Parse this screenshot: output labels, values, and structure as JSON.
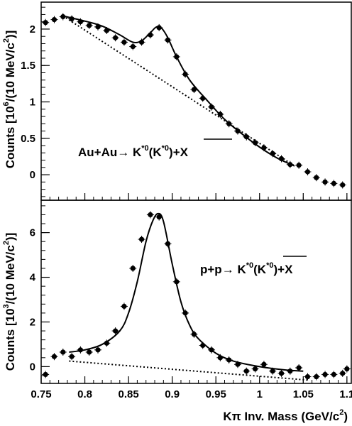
{
  "chart_data": [
    {
      "type": "scatter",
      "panel": "top",
      "annotation": {
        "prefix": "Au+Au",
        "arrow": "→",
        "k": "K",
        "sup": "*0",
        "close": ")",
        "suffix": "+X"
      },
      "ylabel": {
        "pre": "Counts [10",
        "sup1": "6",
        "mid": "/(10 MeV/c",
        "sup2": "2",
        "post": ")]"
      },
      "xlim": [
        0.75,
        1.105
      ],
      "ylim": [
        -0.35,
        2.37
      ],
      "yticks": [
        {
          "v": 0,
          "label": "0"
        },
        {
          "v": 0.5,
          "label": "0.5"
        },
        {
          "v": 1,
          "label": "1"
        },
        {
          "v": 1.5,
          "label": "1.5"
        },
        {
          "v": 2,
          "label": "2"
        }
      ],
      "data_points": {
        "x": [
          0.755,
          0.765,
          0.775,
          0.785,
          0.795,
          0.805,
          0.815,
          0.825,
          0.835,
          0.845,
          0.855,
          0.865,
          0.875,
          0.885,
          0.895,
          0.905,
          0.915,
          0.925,
          0.935,
          0.945,
          0.955,
          0.965,
          0.975,
          0.985,
          0.995,
          1.005,
          1.015,
          1.025,
          1.035,
          1.045,
          1.055,
          1.065,
          1.075,
          1.085,
          1.095
        ],
        "y": [
          2.09,
          2.13,
          2.17,
          2.14,
          2.1,
          2.05,
          2.03,
          1.98,
          1.88,
          1.82,
          1.76,
          1.82,
          1.92,
          2.02,
          1.85,
          1.62,
          1.38,
          1.17,
          1.05,
          0.93,
          0.83,
          0.7,
          0.6,
          0.52,
          0.44,
          0.37,
          0.29,
          0.22,
          0.14,
          0.13,
          0.04,
          -0.04,
          -0.1,
          -0.12,
          -0.14
        ]
      },
      "fit_curve": {
        "x": [
          0.775,
          0.8,
          0.82,
          0.84,
          0.855,
          0.865,
          0.875,
          0.882,
          0.888,
          0.895,
          0.905,
          0.92,
          0.94,
          0.96,
          0.98,
          1.0,
          1.02,
          1.04
        ],
        "y": [
          2.18,
          2.11,
          2.04,
          1.92,
          1.82,
          1.84,
          1.95,
          2.03,
          2.01,
          1.88,
          1.62,
          1.3,
          1.02,
          0.76,
          0.56,
          0.38,
          0.23,
          0.12
        ]
      },
      "background_line": {
        "x": [
          0.775,
          1.04
        ],
        "y": [
          2.18,
          0.12
        ]
      }
    },
    {
      "type": "scatter",
      "panel": "bottom",
      "annotation": {
        "prefix": "p+p",
        "arrow": "→",
        "k": "K",
        "sup": "*0",
        "close": ")",
        "suffix": "+X"
      },
      "ylabel": {
        "pre": "Counts [10",
        "sup1": "3",
        "mid": "/(10 MeV/c",
        "sup2": "2",
        "post": ")]"
      },
      "xlabel": {
        "pre": "Kπ Inv. Mass (GeV/c",
        "sup": "2",
        "post": ")"
      },
      "xlim": [
        0.75,
        1.105
      ],
      "ylim": [
        -0.75,
        7.45
      ],
      "yticks": [
        {
          "v": 0,
          "label": "0"
        },
        {
          "v": 2,
          "label": "2"
        },
        {
          "v": 4,
          "label": "4"
        },
        {
          "v": 6,
          "label": "6"
        }
      ],
      "xticks": [
        {
          "v": 0.75,
          "label": "0.75"
        },
        {
          "v": 0.8,
          "label": "0.8"
        },
        {
          "v": 0.85,
          "label": "0.85"
        },
        {
          "v": 0.9,
          "label": "0.9"
        },
        {
          "v": 0.95,
          "label": "0.95"
        },
        {
          "v": 1.0,
          "label": "1"
        },
        {
          "v": 1.05,
          "label": "1.05"
        },
        {
          "v": 1.1,
          "label": "1.1"
        }
      ],
      "data_points": {
        "x": [
          0.755,
          0.765,
          0.775,
          0.785,
          0.795,
          0.805,
          0.815,
          0.825,
          0.835,
          0.845,
          0.855,
          0.865,
          0.875,
          0.885,
          0.895,
          0.905,
          0.915,
          0.925,
          0.935,
          0.945,
          0.955,
          0.965,
          0.975,
          0.985,
          0.995,
          1.005,
          1.015,
          1.025,
          1.035,
          1.045,
          1.055,
          1.065,
          1.075,
          1.085,
          1.095,
          1.1
        ],
        "y": [
          -0.35,
          0.45,
          0.65,
          0.45,
          0.75,
          0.65,
          0.75,
          1.05,
          1.6,
          2.7,
          4.4,
          5.7,
          6.8,
          6.7,
          5.5,
          3.8,
          2.4,
          1.45,
          0.95,
          0.75,
          0.4,
          0.3,
          0.1,
          -0.2,
          -0.1,
          0.1,
          -0.2,
          -0.3,
          -0.2,
          -0.05,
          -0.45,
          -0.45,
          -0.35,
          -0.35,
          -0.3,
          -0.1
        ]
      },
      "fit_curve": {
        "x": [
          0.782,
          0.8,
          0.82,
          0.84,
          0.85,
          0.86,
          0.87,
          0.878,
          0.884,
          0.89,
          0.9,
          0.91,
          0.92,
          0.93,
          0.95,
          0.97,
          1.0,
          1.03,
          1.05
        ],
        "y": [
          0.65,
          0.75,
          1.0,
          1.6,
          2.4,
          3.8,
          5.6,
          6.55,
          6.85,
          6.5,
          4.6,
          2.9,
          1.85,
          1.25,
          0.6,
          0.25,
          0.0,
          -0.15,
          -0.2
        ]
      },
      "background_line": {
        "x": [
          0.782,
          1.055
        ],
        "y": [
          0.25,
          -0.6
        ]
      }
    }
  ]
}
